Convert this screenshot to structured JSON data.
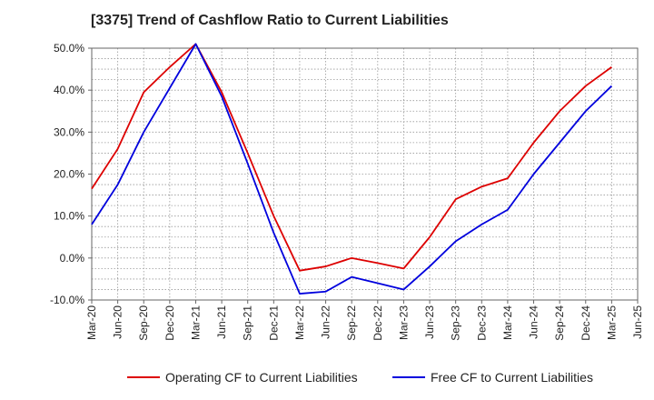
{
  "chart_data": {
    "type": "line",
    "title": "[3375]  Trend of Cashflow Ratio to Current Liabilities",
    "x": [
      "Mar-20",
      "Jun-20",
      "Sep-20",
      "Dec-20",
      "Mar-21",
      "Jun-21",
      "Sep-21",
      "Dec-21",
      "Mar-22",
      "Jun-22",
      "Sep-22",
      "Dec-22",
      "Mar-23",
      "Jun-23",
      "Sep-23",
      "Dec-23",
      "Mar-24",
      "Jun-24",
      "Sep-24",
      "Dec-24",
      "Mar-25",
      "Jun-25"
    ],
    "ylim": [
      -10,
      50
    ],
    "ytick_values": [
      -10,
      0,
      10,
      20,
      30,
      40,
      50
    ],
    "ytick_labels": [
      "-10.0%",
      "0.0%",
      "10.0%",
      "20.0%",
      "30.0%",
      "40.0%",
      "50.0%"
    ],
    "grid": true,
    "legend_position": "bottom",
    "series": [
      {
        "name": "Operating CF to Current Liabilities",
        "color": "#dd0000",
        "values": [
          16.5,
          26.0,
          39.5,
          45.5,
          51.0,
          39.5,
          25.0,
          10.0,
          -3.0,
          -2.0,
          0.0,
          -1.2,
          -2.5,
          5.0,
          14.0,
          17.0,
          19.0,
          27.5,
          35.0,
          41.0,
          45.5,
          null
        ]
      },
      {
        "name": "Free CF to Current Liabilities",
        "color": "#0000dd",
        "values": [
          8.0,
          17.5,
          30.0,
          40.5,
          51.0,
          38.5,
          22.5,
          6.0,
          -8.5,
          -8.0,
          -4.5,
          -6.0,
          -7.5,
          -2.0,
          4.0,
          8.0,
          11.5,
          20.0,
          27.5,
          35.0,
          41.0,
          null
        ]
      }
    ]
  }
}
